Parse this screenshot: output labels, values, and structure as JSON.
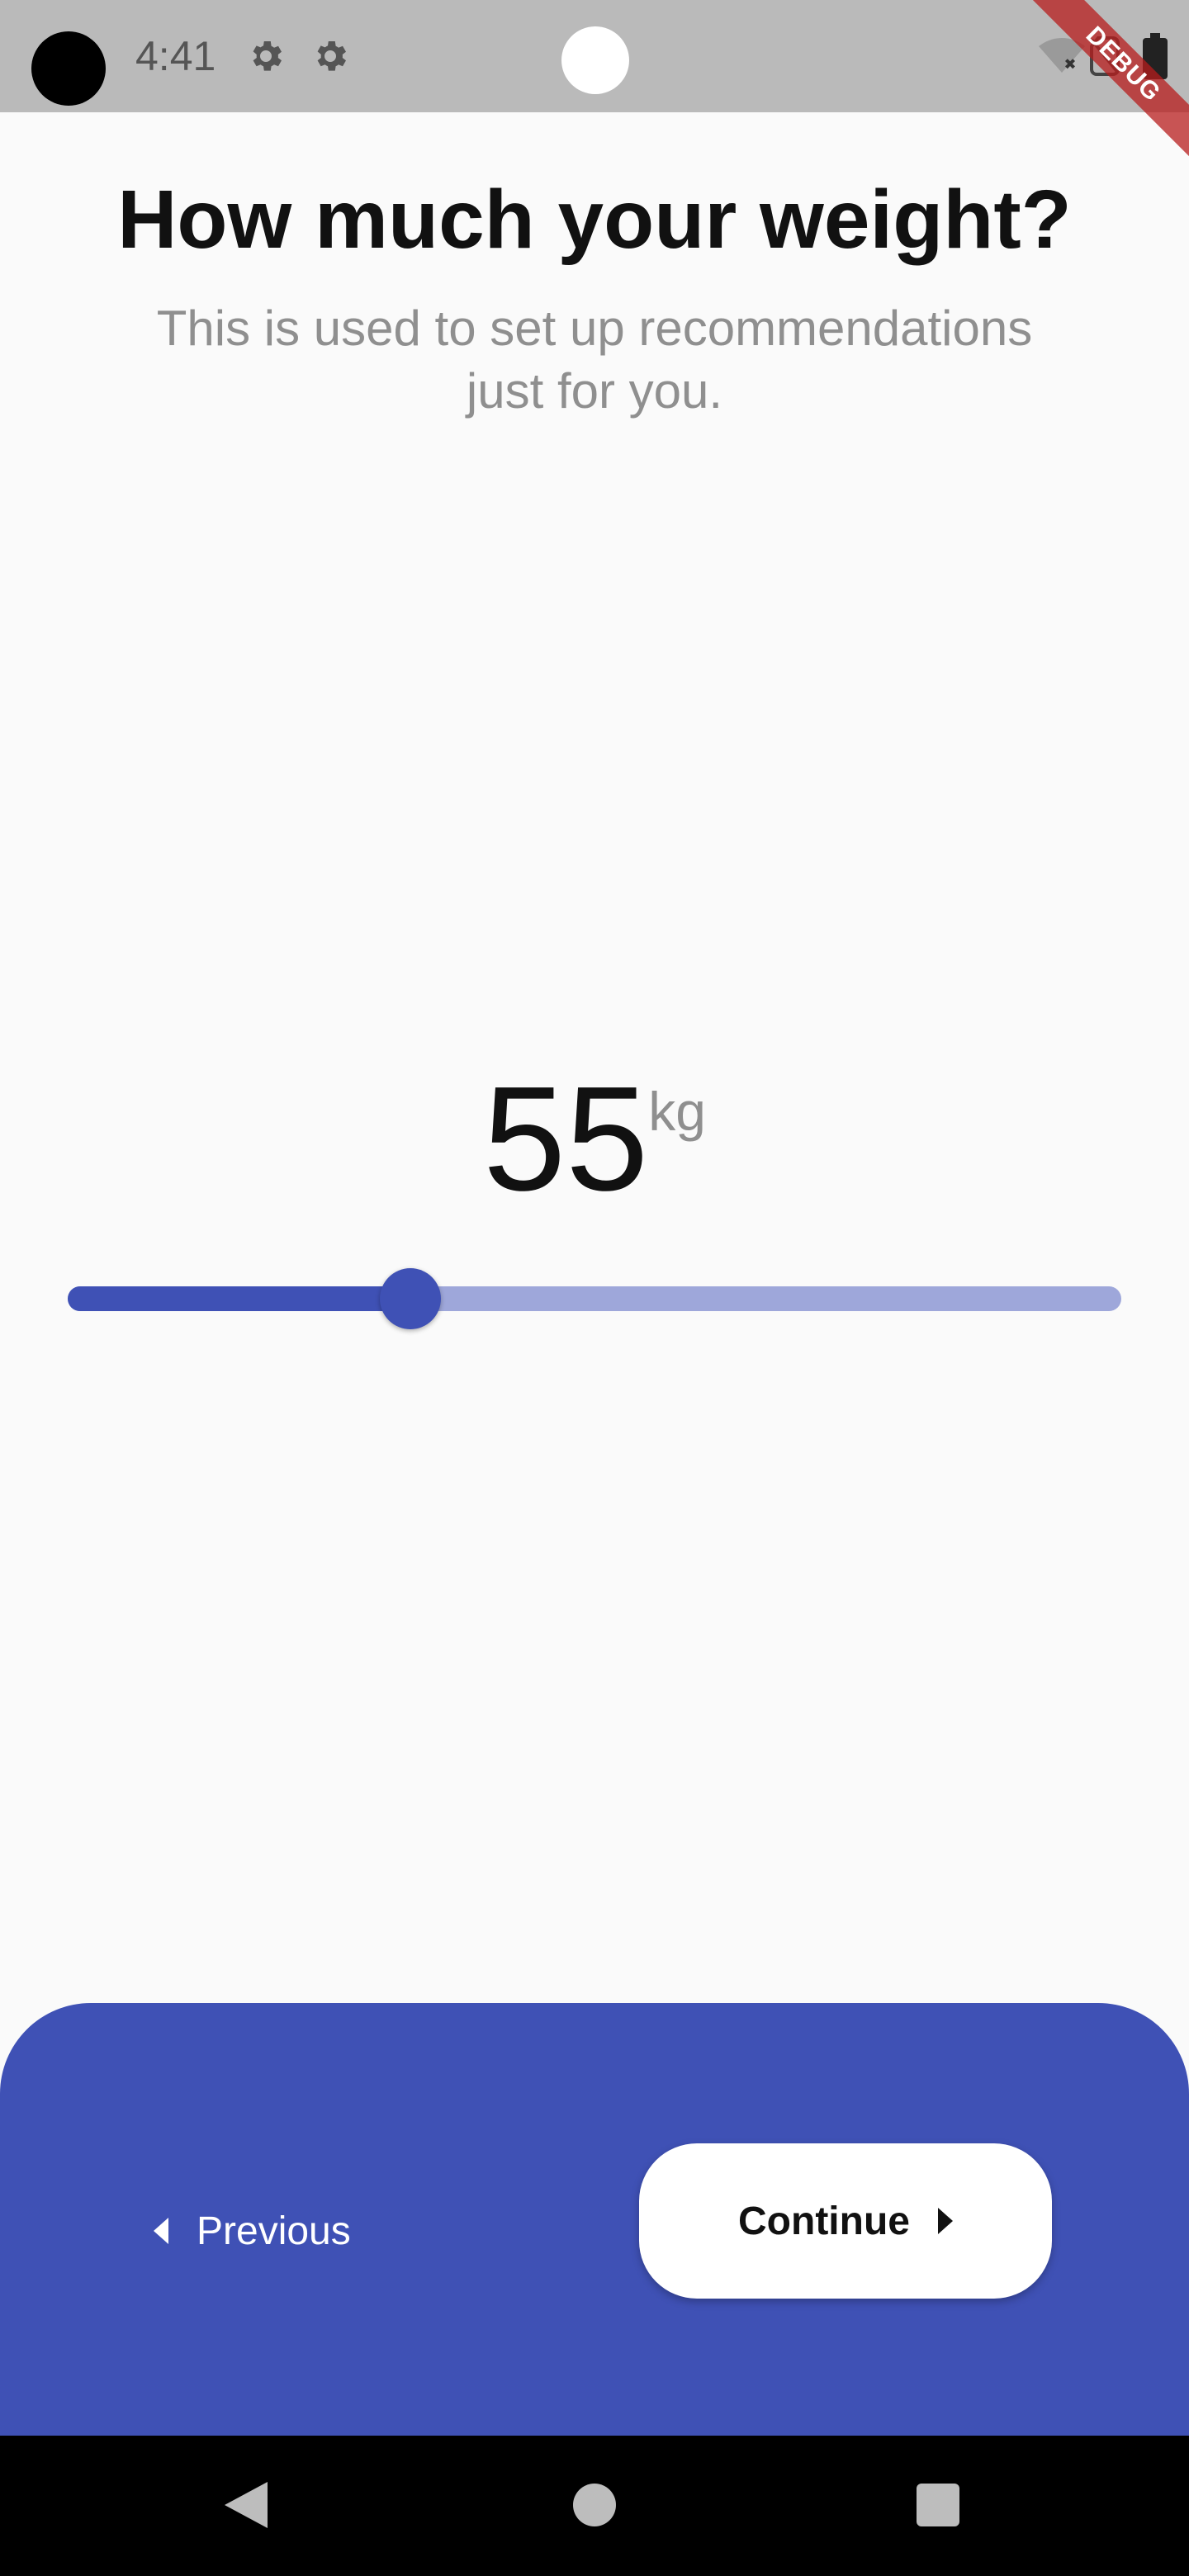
{
  "status_bar": {
    "time": "4:41",
    "debug_label": "DEBUG"
  },
  "header": {
    "title": "How much your weight?",
    "subtitle": "This is used to set up recommendations just for you."
  },
  "weight": {
    "value": "55",
    "unit": "kg",
    "slider_fraction": 0.325
  },
  "footer": {
    "previous_label": "Previous",
    "continue_label": "Continue"
  },
  "colors": {
    "accent": "#3f51b5",
    "accent_light": "#9ea7da",
    "background": "#fafafa",
    "status_bar": "#bababa"
  }
}
